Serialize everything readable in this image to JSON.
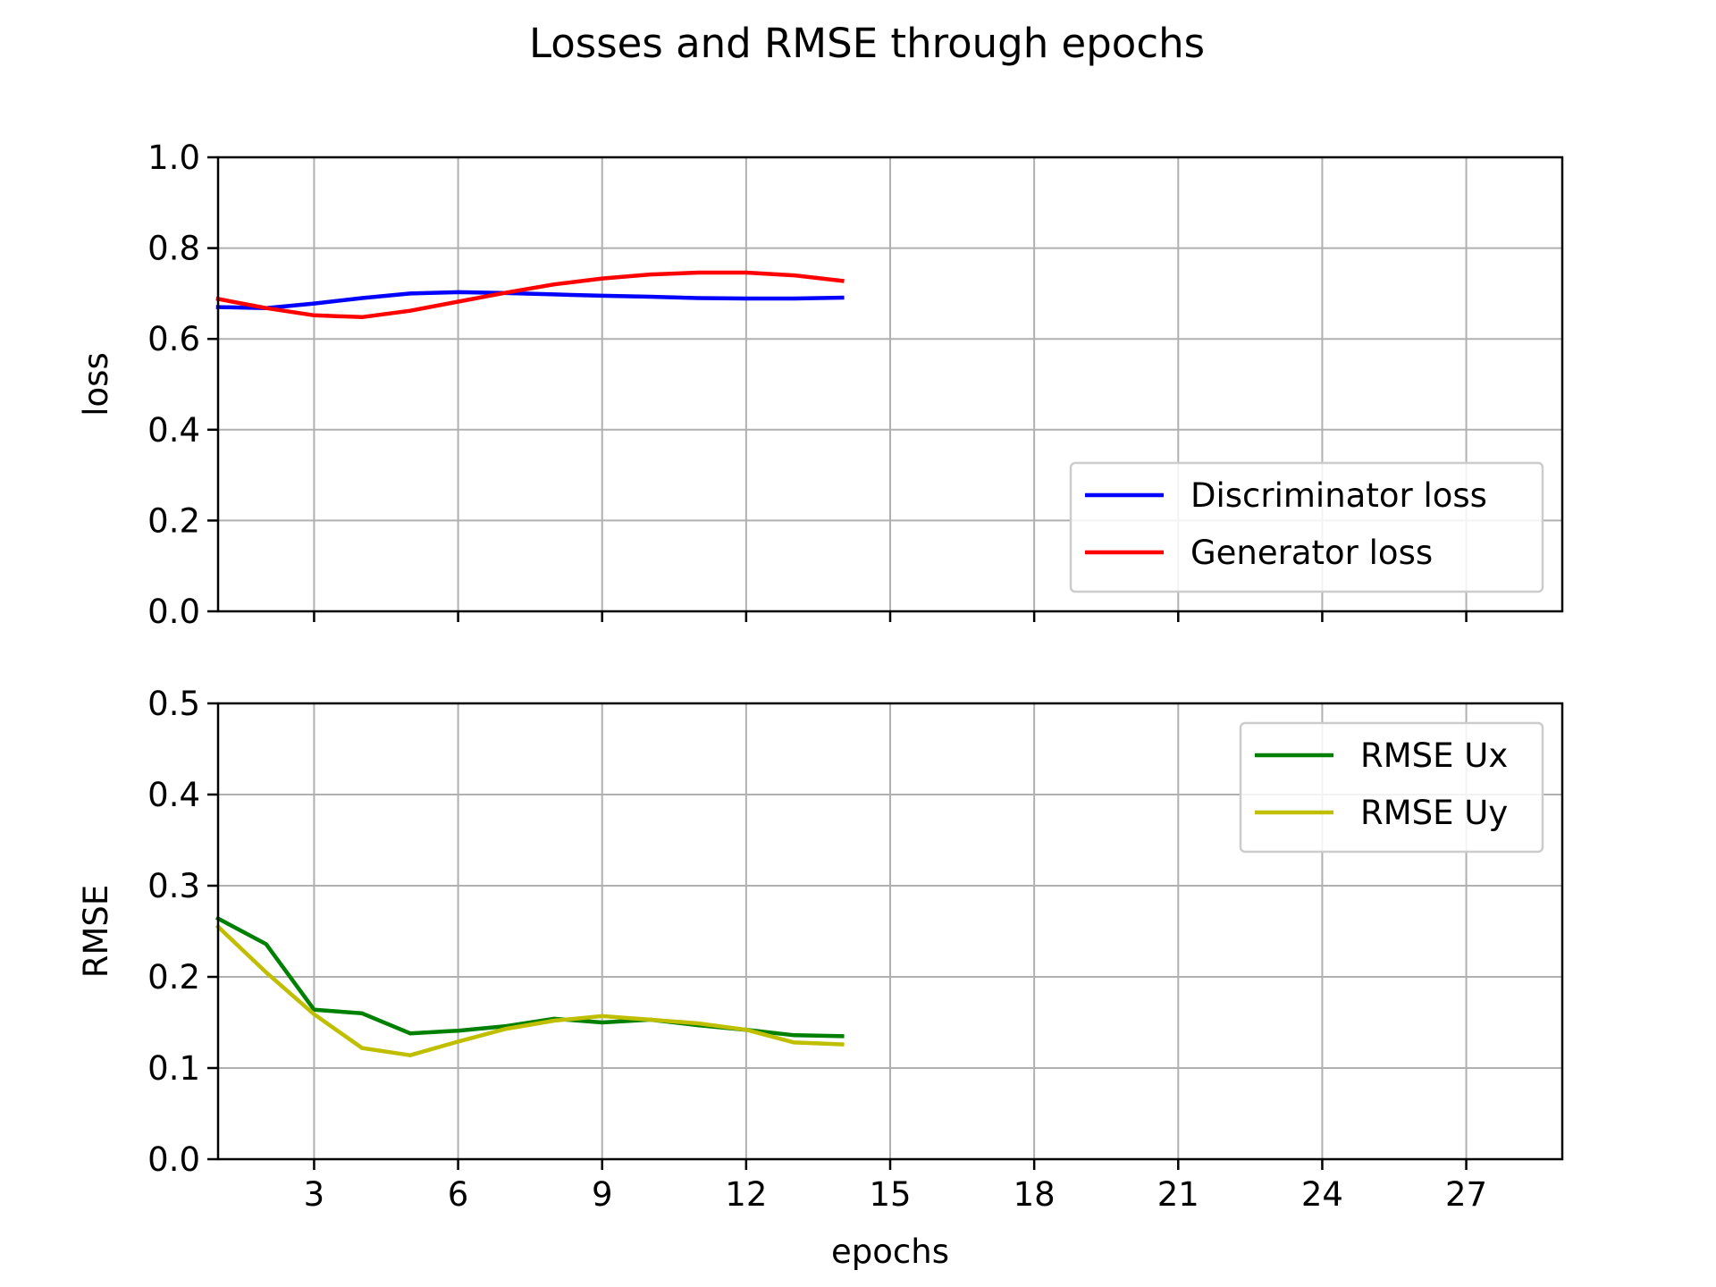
{
  "title": "Losses and RMSE through epochs",
  "chart_data": [
    {
      "type": "line",
      "ylabel": "loss",
      "xlabel": "",
      "xlim": [
        1,
        29
      ],
      "ylim": [
        0.0,
        1.0
      ],
      "xticks": [
        3,
        6,
        9,
        12,
        15,
        18,
        21,
        24,
        27
      ],
      "yticks": [
        0.0,
        0.2,
        0.4,
        0.6,
        0.8,
        1.0
      ],
      "ytick_labels": [
        "0.0",
        "0.2",
        "0.4",
        "0.6",
        "0.8",
        "1.0"
      ],
      "show_xtick_labels": false,
      "grid": true,
      "legend_position": "lower-right",
      "x": [
        1,
        2,
        3,
        4,
        5,
        6,
        7,
        8,
        9,
        10,
        11,
        12,
        13,
        14
      ],
      "series": [
        {
          "name": "Discriminator loss",
          "color": "#0000ff",
          "values": [
            0.67,
            0.668,
            0.678,
            0.69,
            0.7,
            0.703,
            0.701,
            0.698,
            0.695,
            0.693,
            0.69,
            0.689,
            0.689,
            0.691
          ]
        },
        {
          "name": "Generator loss",
          "color": "#ff0000",
          "values": [
            0.688,
            0.668,
            0.652,
            0.648,
            0.662,
            0.682,
            0.702,
            0.72,
            0.733,
            0.742,
            0.746,
            0.746,
            0.74,
            0.728
          ]
        }
      ]
    },
    {
      "type": "line",
      "ylabel": "RMSE",
      "xlabel": "epochs",
      "xlim": [
        1,
        29
      ],
      "ylim": [
        0.0,
        0.5
      ],
      "xticks": [
        3,
        6,
        9,
        12,
        15,
        18,
        21,
        24,
        27
      ],
      "xtick_labels": [
        "3",
        "6",
        "9",
        "12",
        "15",
        "18",
        "21",
        "24",
        "27"
      ],
      "yticks": [
        0.0,
        0.1,
        0.2,
        0.3,
        0.4,
        0.5
      ],
      "ytick_labels": [
        "0.0",
        "0.1",
        "0.2",
        "0.3",
        "0.4",
        "0.5"
      ],
      "show_xtick_labels": true,
      "grid": true,
      "legend_position": "upper-right",
      "x": [
        1,
        2,
        3,
        4,
        5,
        6,
        7,
        8,
        9,
        10,
        11,
        12,
        13,
        14
      ],
      "series": [
        {
          "name": "RMSE Ux",
          "color": "#008000",
          "values": [
            0.264,
            0.236,
            0.164,
            0.16,
            0.138,
            0.141,
            0.146,
            0.154,
            0.15,
            0.153,
            0.147,
            0.142,
            0.136,
            0.135
          ]
        },
        {
          "name": "RMSE Uy",
          "color": "#bfbf00",
          "values": [
            0.255,
            0.205,
            0.159,
            0.122,
            0.114,
            0.129,
            0.143,
            0.152,
            0.157,
            0.153,
            0.149,
            0.142,
            0.128,
            0.126
          ]
        }
      ]
    }
  ]
}
